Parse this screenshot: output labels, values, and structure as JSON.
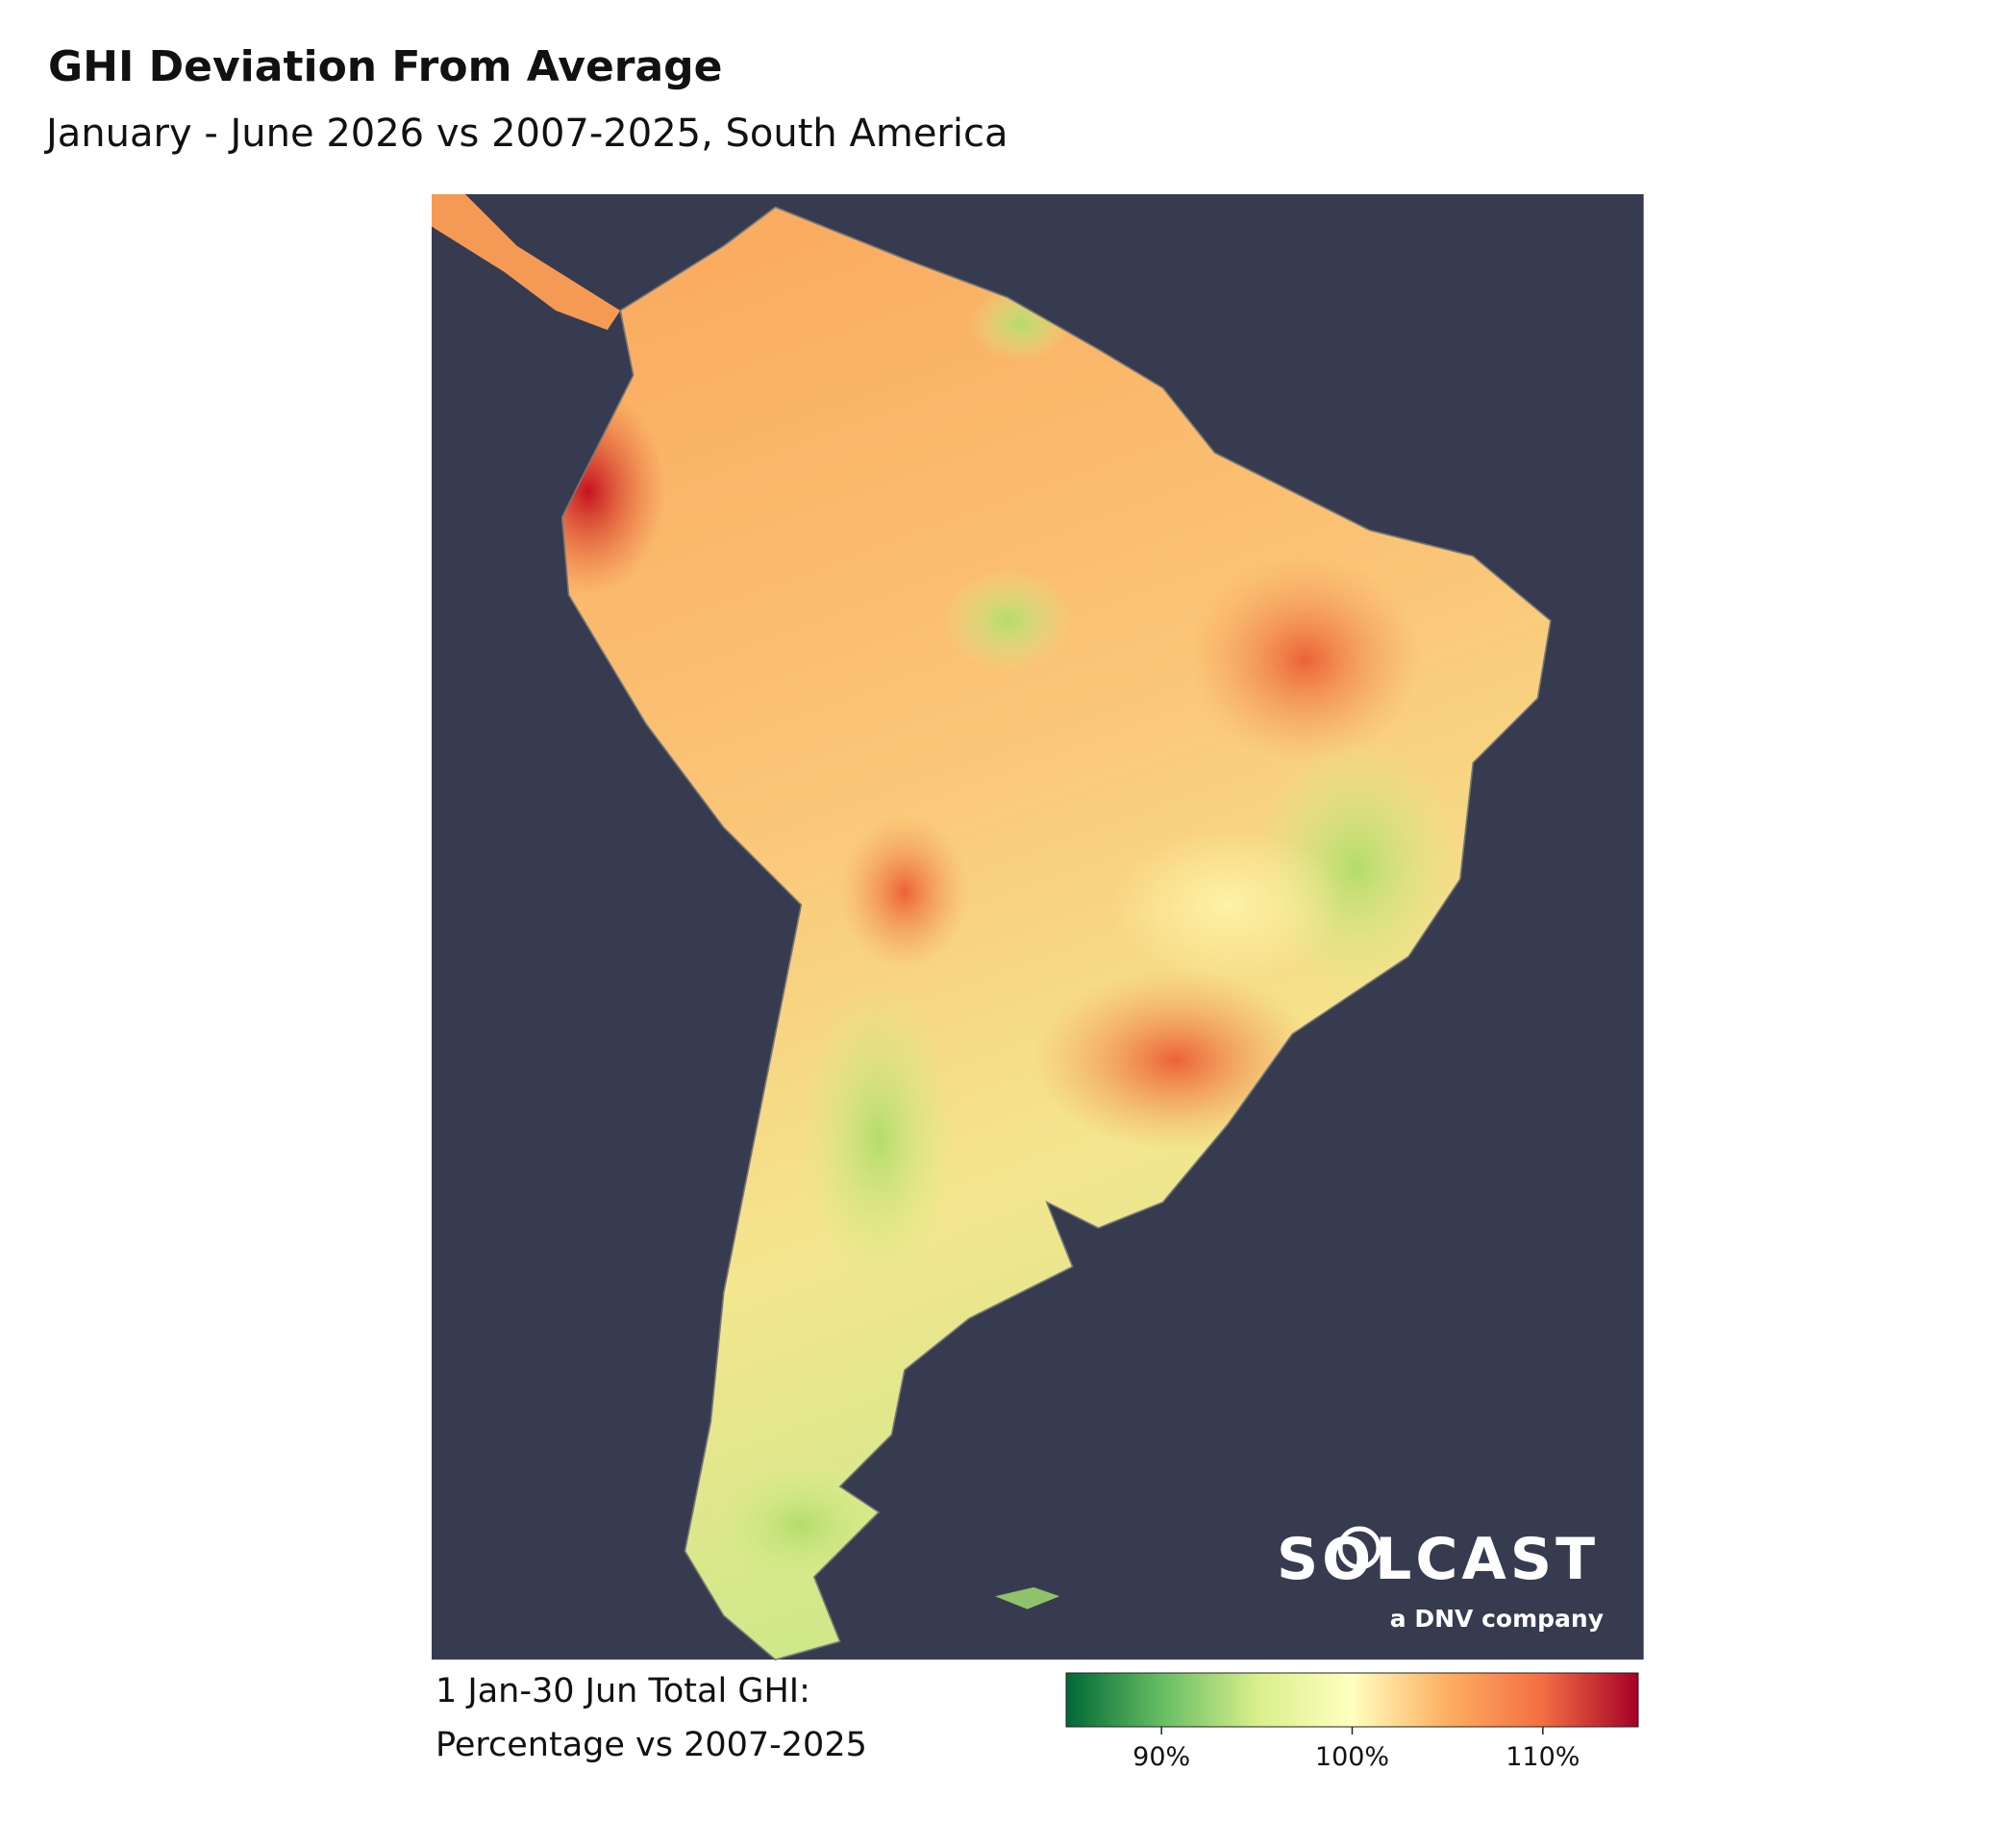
{
  "title": "GHI Deviation From Average",
  "subtitle": "January - June 2026 vs 2007-2025, South America",
  "legend": {
    "title_lines": [
      "1 Jan-30 Jun Total GHI:",
      "Percentage vs 2007-2025"
    ]
  },
  "colorbar": {
    "range": [
      85,
      115
    ],
    "ticks": [
      {
        "value": 90,
        "label": "90%"
      },
      {
        "value": 100,
        "label": "100%"
      },
      {
        "value": 110,
        "label": "110%"
      }
    ],
    "colors": [
      "#006837",
      "#66bd63",
      "#d9ef8b",
      "#ffffbf",
      "#fdae61",
      "#f46d43",
      "#a50026"
    ]
  },
  "logo": {
    "name": "SOLCAST",
    "tagline": "a DNV company"
  }
}
